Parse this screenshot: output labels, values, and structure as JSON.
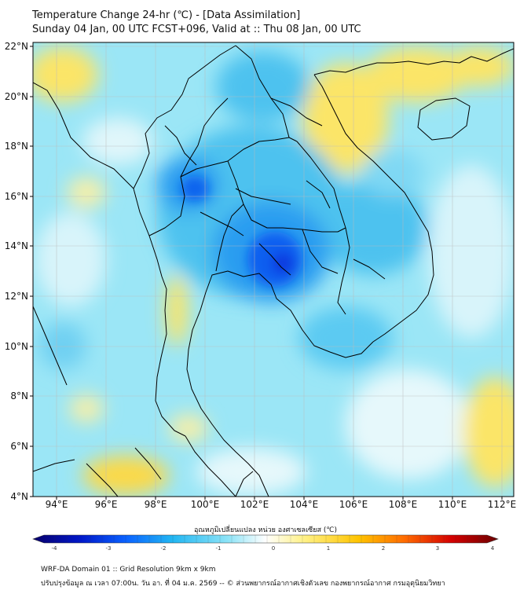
{
  "header": {
    "title": "Temperature Change 24-hr (℃) - [Data Assimilation]",
    "subtitle": "Sunday 04 Jan, 00 UTC FCST+096, Valid at :: Thu 08 Jan, 00 UTC"
  },
  "map": {
    "lon_range": [
      93,
      112.3
    ],
    "lat_range": [
      4,
      22.2
    ],
    "lon_ticks": [
      "94°E",
      "96°E",
      "98°E",
      "100°E",
      "102°E",
      "104°E",
      "106°E",
      "108°E",
      "110°E",
      "112°E"
    ],
    "lon_values": [
      94,
      96,
      98,
      100,
      102,
      104,
      106,
      108,
      110,
      112
    ],
    "lat_ticks": [
      "4°N",
      "6°N",
      "8°N",
      "10°N",
      "12°N",
      "14°N",
      "16°N",
      "18°N",
      "20°N",
      "22°N"
    ],
    "lat_values": [
      4,
      6,
      8,
      10,
      12,
      14,
      16,
      18,
      20,
      22
    ],
    "field_features": [
      {
        "type": "cold",
        "lon": 102.8,
        "lat": 13.6,
        "value": -3.0
      },
      {
        "type": "cold",
        "lon": 99.6,
        "lat": 16.3,
        "value": -2.4
      },
      {
        "type": "cold",
        "lon": 101.3,
        "lat": 20.3,
        "value": -1.6
      },
      {
        "type": "cold",
        "lon": 105.5,
        "lat": 10.0,
        "value": -1.4
      },
      {
        "type": "warm",
        "lon": 94.3,
        "lat": 21.0,
        "value": 0.8
      },
      {
        "type": "warm",
        "lon": 106.5,
        "lat": 19.5,
        "value": 0.9
      },
      {
        "type": "warm",
        "lon": 109.0,
        "lat": 21.5,
        "value": 0.8
      },
      {
        "type": "warm",
        "lon": 96.8,
        "lat": 4.6,
        "value": 1.0
      },
      {
        "type": "warm",
        "lon": 111.5,
        "lat": 7.0,
        "value": 0.8
      },
      {
        "type": "warm",
        "lon": 98.6,
        "lat": 11.5,
        "value": 0.5
      }
    ],
    "colors": {
      "land_border": "#000000",
      "grid": "#bbbbbb"
    }
  },
  "colorbar": {
    "label": "อุณหภูมิเปลี่ยนแปลง หน่วย องศาเซลเซียส (℃)",
    "min": -4,
    "max": 4,
    "ticks": [
      "-4",
      "-3",
      "-2",
      "-1",
      "0",
      "1",
      "2",
      "3",
      "4"
    ],
    "tick_values": [
      -4,
      -3,
      -2,
      -1,
      0,
      1,
      2,
      3,
      4
    ],
    "stops": [
      "#08006b",
      "#0016c8",
      "#0a62ff",
      "#22b6f2",
      "#8ee4f7",
      "#ffffff",
      "#fff28a",
      "#ffc400",
      "#ff6a00",
      "#d40000",
      "#6b0000"
    ]
  },
  "footer": {
    "line1": "WRF-DA Domain 01 :: Grid Resolution 9km x 9km",
    "line2": "ปรับปรุงข้อมูล ณ เวลา 07:00น. วัน อา. ที่ 04 ม.ค. 2569 -- © ส่วนพยากรณ์อากาศเชิงตัวเลข กองพยากรณ์อากาศ กรมอุตุนิยมวิทยา"
  }
}
